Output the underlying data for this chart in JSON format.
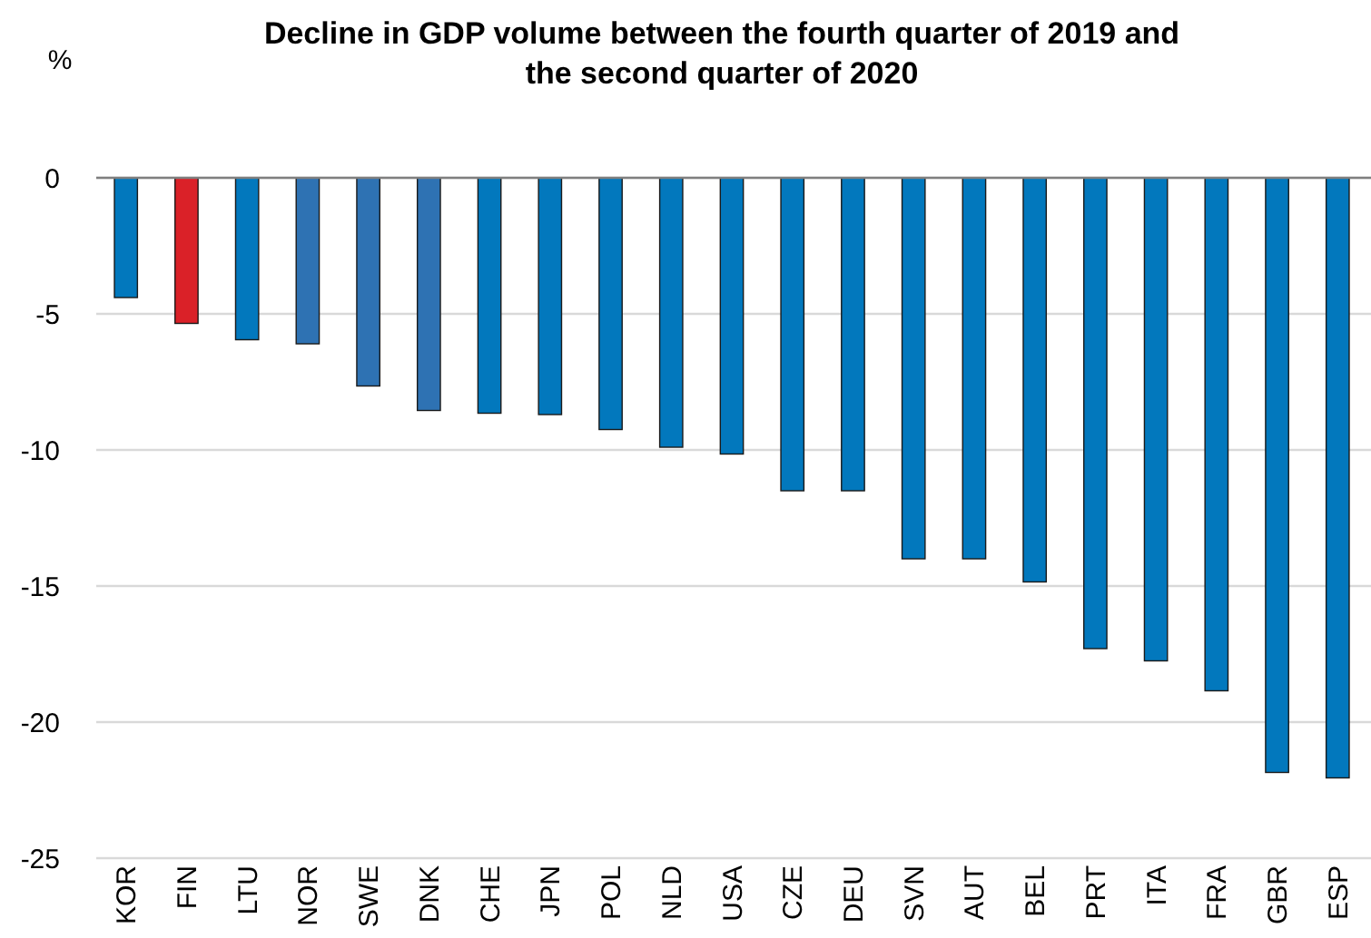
{
  "chart_data": {
    "type": "bar",
    "title": "Decline in GDP volume between the fourth quarter of 2019 and\nthe second quarter of 2020",
    "ylabel": "%",
    "categories": [
      "KOR",
      "FIN",
      "LTU",
      "NOR",
      "SWE",
      "DNK",
      "CHE",
      "JPN",
      "POL",
      "NLD",
      "USA",
      "CZE",
      "DEU",
      "SVN",
      "AUT",
      "BEL",
      "PRT",
      "ITA",
      "FRA",
      "GBR",
      "ESP"
    ],
    "values": [
      -4.4,
      -5.35,
      -5.95,
      -6.1,
      -7.65,
      -8.55,
      -8.65,
      -8.7,
      -9.25,
      -9.9,
      -10.15,
      -11.5,
      -11.5,
      -14.0,
      -14.0,
      -14.85,
      -17.3,
      -17.75,
      -18.85,
      -21.85,
      -22.05
    ],
    "colors": [
      "#0278bd",
      "#da2128",
      "#0278bd",
      "#2e72b3",
      "#2e72b3",
      "#2e72b3",
      "#0278bd",
      "#0278bd",
      "#0278bd",
      "#0278bd",
      "#0278bd",
      "#0278bd",
      "#0278bd",
      "#0278bd",
      "#0278bd",
      "#0278bd",
      "#0278bd",
      "#0278bd",
      "#0278bd",
      "#0278bd",
      "#0278bd"
    ],
    "ylim": [
      -25,
      0
    ],
    "yticks": [
      0,
      -5,
      -10,
      -15,
      -20,
      -25
    ],
    "grid": "y"
  }
}
